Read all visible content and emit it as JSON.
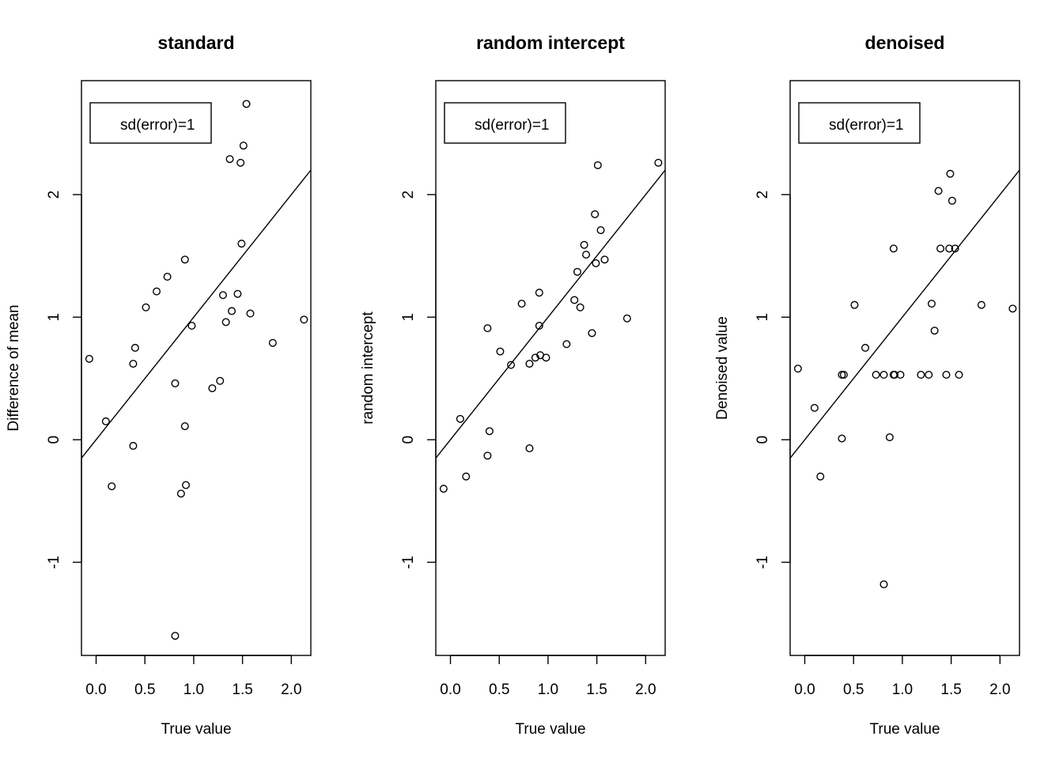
{
  "chart_data": [
    {
      "type": "scatter",
      "title": "standard",
      "xlabel": "True value",
      "ylabel": "Difference of mean",
      "xlim": [
        -0.15,
        2.2
      ],
      "ylim": [
        -1.76,
        2.93
      ],
      "xticks": [
        "0.0",
        "0.5",
        "1.0",
        "1.5",
        "2.0"
      ],
      "yticks": [
        "-1",
        "0",
        "1",
        "2"
      ],
      "legend": {
        "text": "sd(error)=1",
        "position": "top-left"
      },
      "reference_line": {
        "intercept": 0,
        "slope": 1
      },
      "grid": false,
      "points": [
        {
          "x": -0.07,
          "y": 0.66
        },
        {
          "x": 0.1,
          "y": 0.15
        },
        {
          "x": 0.16,
          "y": -0.38
        },
        {
          "x": 0.38,
          "y": 0.62
        },
        {
          "x": 0.38,
          "y": -0.05
        },
        {
          "x": 0.4,
          "y": 0.75
        },
        {
          "x": 0.51,
          "y": 1.08
        },
        {
          "x": 0.62,
          "y": 1.21
        },
        {
          "x": 0.73,
          "y": 1.33
        },
        {
          "x": 0.81,
          "y": 0.46
        },
        {
          "x": 0.81,
          "y": -1.6
        },
        {
          "x": 0.87,
          "y": -0.44
        },
        {
          "x": 0.91,
          "y": 1.47
        },
        {
          "x": 0.91,
          "y": 0.11
        },
        {
          "x": 0.92,
          "y": -0.37
        },
        {
          "x": 0.98,
          "y": 0.93
        },
        {
          "x": 1.19,
          "y": 0.42
        },
        {
          "x": 1.27,
          "y": 0.48
        },
        {
          "x": 1.3,
          "y": 1.18
        },
        {
          "x": 1.33,
          "y": 0.96
        },
        {
          "x": 1.37,
          "y": 2.29
        },
        {
          "x": 1.39,
          "y": 1.05
        },
        {
          "x": 1.45,
          "y": 1.19
        },
        {
          "x": 1.48,
          "y": 2.26
        },
        {
          "x": 1.49,
          "y": 1.6
        },
        {
          "x": 1.51,
          "y": 2.4
        },
        {
          "x": 1.54,
          "y": 2.74
        },
        {
          "x": 1.58,
          "y": 1.03
        },
        {
          "x": 1.81,
          "y": 0.79
        },
        {
          "x": 2.13,
          "y": 0.98
        }
      ]
    },
    {
      "type": "scatter",
      "title": "random intercept",
      "xlabel": "True value",
      "ylabel": "random intercept",
      "xlim": [
        -0.15,
        2.2
      ],
      "ylim": [
        -1.76,
        2.93
      ],
      "xticks": [
        "0.0",
        "0.5",
        "1.0",
        "1.5",
        "2.0"
      ],
      "yticks": [
        "-1",
        "0",
        "1",
        "2"
      ],
      "legend": {
        "text": "sd(error)=1",
        "position": "top-left"
      },
      "reference_line": {
        "intercept": 0,
        "slope": 1
      },
      "grid": false,
      "points": [
        {
          "x": -0.07,
          "y": -0.4
        },
        {
          "x": 0.1,
          "y": 0.17
        },
        {
          "x": 0.16,
          "y": -0.3
        },
        {
          "x": 0.38,
          "y": 0.91
        },
        {
          "x": 0.38,
          "y": -0.13
        },
        {
          "x": 0.4,
          "y": 0.07
        },
        {
          "x": 0.51,
          "y": 0.72
        },
        {
          "x": 0.62,
          "y": 0.61
        },
        {
          "x": 0.73,
          "y": 1.11
        },
        {
          "x": 0.81,
          "y": 0.62
        },
        {
          "x": 0.81,
          "y": -0.07
        },
        {
          "x": 0.87,
          "y": 0.67
        },
        {
          "x": 0.91,
          "y": 1.2
        },
        {
          "x": 0.91,
          "y": 0.93
        },
        {
          "x": 0.92,
          "y": 0.69
        },
        {
          "x": 0.98,
          "y": 0.67
        },
        {
          "x": 1.19,
          "y": 0.78
        },
        {
          "x": 1.27,
          "y": 1.14
        },
        {
          "x": 1.3,
          "y": 1.37
        },
        {
          "x": 1.33,
          "y": 1.08
        },
        {
          "x": 1.37,
          "y": 1.59
        },
        {
          "x": 1.39,
          "y": 1.51
        },
        {
          "x": 1.45,
          "y": 0.87
        },
        {
          "x": 1.48,
          "y": 1.84
        },
        {
          "x": 1.49,
          "y": 1.44
        },
        {
          "x": 1.51,
          "y": 2.24
        },
        {
          "x": 1.54,
          "y": 1.71
        },
        {
          "x": 1.58,
          "y": 1.47
        },
        {
          "x": 1.81,
          "y": 0.99
        },
        {
          "x": 2.13,
          "y": 2.26
        }
      ]
    },
    {
      "type": "scatter",
      "title": "denoised",
      "xlabel": "True value",
      "ylabel": "Denoised value",
      "xlim": [
        -0.15,
        2.2
      ],
      "ylim": [
        -1.76,
        2.93
      ],
      "xticks": [
        "0.0",
        "0.5",
        "1.0",
        "1.5",
        "2.0"
      ],
      "yticks": [
        "-1",
        "0",
        "1",
        "2"
      ],
      "legend": {
        "text": "sd(error)=1",
        "position": "top-left"
      },
      "reference_line": {
        "intercept": 0,
        "slope": 1
      },
      "grid": false,
      "points": [
        {
          "x": -0.07,
          "y": 0.58
        },
        {
          "x": 0.1,
          "y": 0.26
        },
        {
          "x": 0.16,
          "y": -0.3
        },
        {
          "x": 0.38,
          "y": 0.53
        },
        {
          "x": 0.38,
          "y": 0.01
        },
        {
          "x": 0.4,
          "y": 0.53
        },
        {
          "x": 0.51,
          "y": 1.1
        },
        {
          "x": 0.62,
          "y": 0.75
        },
        {
          "x": 0.73,
          "y": 0.53
        },
        {
          "x": 0.81,
          "y": 0.53
        },
        {
          "x": 0.81,
          "y": -1.18
        },
        {
          "x": 0.87,
          "y": 0.02
        },
        {
          "x": 0.91,
          "y": 1.56
        },
        {
          "x": 0.91,
          "y": 0.53
        },
        {
          "x": 0.92,
          "y": 0.53
        },
        {
          "x": 0.98,
          "y": 0.53
        },
        {
          "x": 1.19,
          "y": 0.53
        },
        {
          "x": 1.27,
          "y": 0.53
        },
        {
          "x": 1.3,
          "y": 1.11
        },
        {
          "x": 1.33,
          "y": 0.89
        },
        {
          "x": 1.37,
          "y": 2.03
        },
        {
          "x": 1.39,
          "y": 1.56
        },
        {
          "x": 1.45,
          "y": 0.53
        },
        {
          "x": 1.48,
          "y": 1.56
        },
        {
          "x": 1.49,
          "y": 2.17
        },
        {
          "x": 1.51,
          "y": 1.95
        },
        {
          "x": 1.54,
          "y": 1.56
        },
        {
          "x": 1.58,
          "y": 0.53
        },
        {
          "x": 1.81,
          "y": 1.1
        },
        {
          "x": 2.13,
          "y": 1.07
        }
      ]
    }
  ]
}
